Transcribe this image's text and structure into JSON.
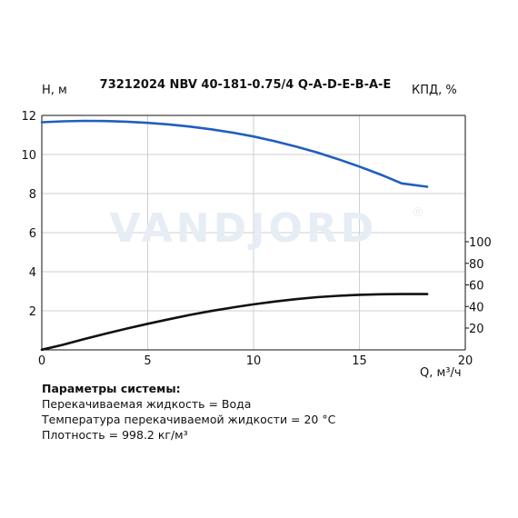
{
  "chart_data": {
    "type": "line",
    "title": "73212024 NBV 40-181-0.75/4 Q-A-D-E-B-A-E",
    "xlabel": "Q, м³/ч",
    "ylabel_left": "H, м",
    "ylabel_right": "КПД, %",
    "xlim": [
      0,
      20
    ],
    "ylim_left": [
      0,
      12
    ],
    "ylim_right_ticks": [
      20,
      40,
      60,
      80,
      100
    ],
    "x_ticks": [
      "0",
      "5",
      "10",
      "15",
      "20"
    ],
    "y_ticks_left": [
      "2",
      "4",
      "6",
      "8",
      "10",
      "12"
    ],
    "y_ticks_right": [
      "20",
      "40",
      "60",
      "80",
      "100"
    ],
    "grid": true,
    "series": [
      {
        "color": "#1f5fbf",
        "axis": "left",
        "x": [
          0,
          1,
          2,
          3,
          4,
          5,
          6,
          7,
          8,
          9,
          10,
          11,
          12,
          13,
          14,
          15,
          16,
          17,
          18.2
        ],
        "y": [
          11.65,
          11.7,
          11.72,
          11.71,
          11.68,
          11.62,
          11.54,
          11.43,
          11.29,
          11.12,
          10.92,
          10.68,
          10.41,
          10.1,
          9.76,
          9.38,
          8.97,
          8.52,
          8.35
        ]
      },
      {
        "color": "#111111",
        "axis": "right",
        "x": [
          0,
          1,
          2,
          3,
          4,
          5,
          6,
          7,
          8,
          9,
          10,
          11,
          12,
          13,
          14,
          15,
          16,
          17,
          18.2
        ],
        "y": [
          0,
          4.5,
          9.8,
          14.8,
          19.5,
          24.0,
          28.2,
          32.2,
          35.8,
          39.0,
          42.0,
          44.6,
          46.8,
          48.6,
          49.9,
          50.8,
          51.3,
          51.5,
          51.5
        ]
      }
    ],
    "watermark": "VANDJORD",
    "watermark_mark": "®"
  },
  "params": {
    "heading": "Параметры системы:",
    "lines": [
      "Перекачиваемая жидкость = Вода",
      "Температура перекачиваемой жидкости = 20 °C",
      "Плотность = 998.2 кг/м³"
    ]
  }
}
